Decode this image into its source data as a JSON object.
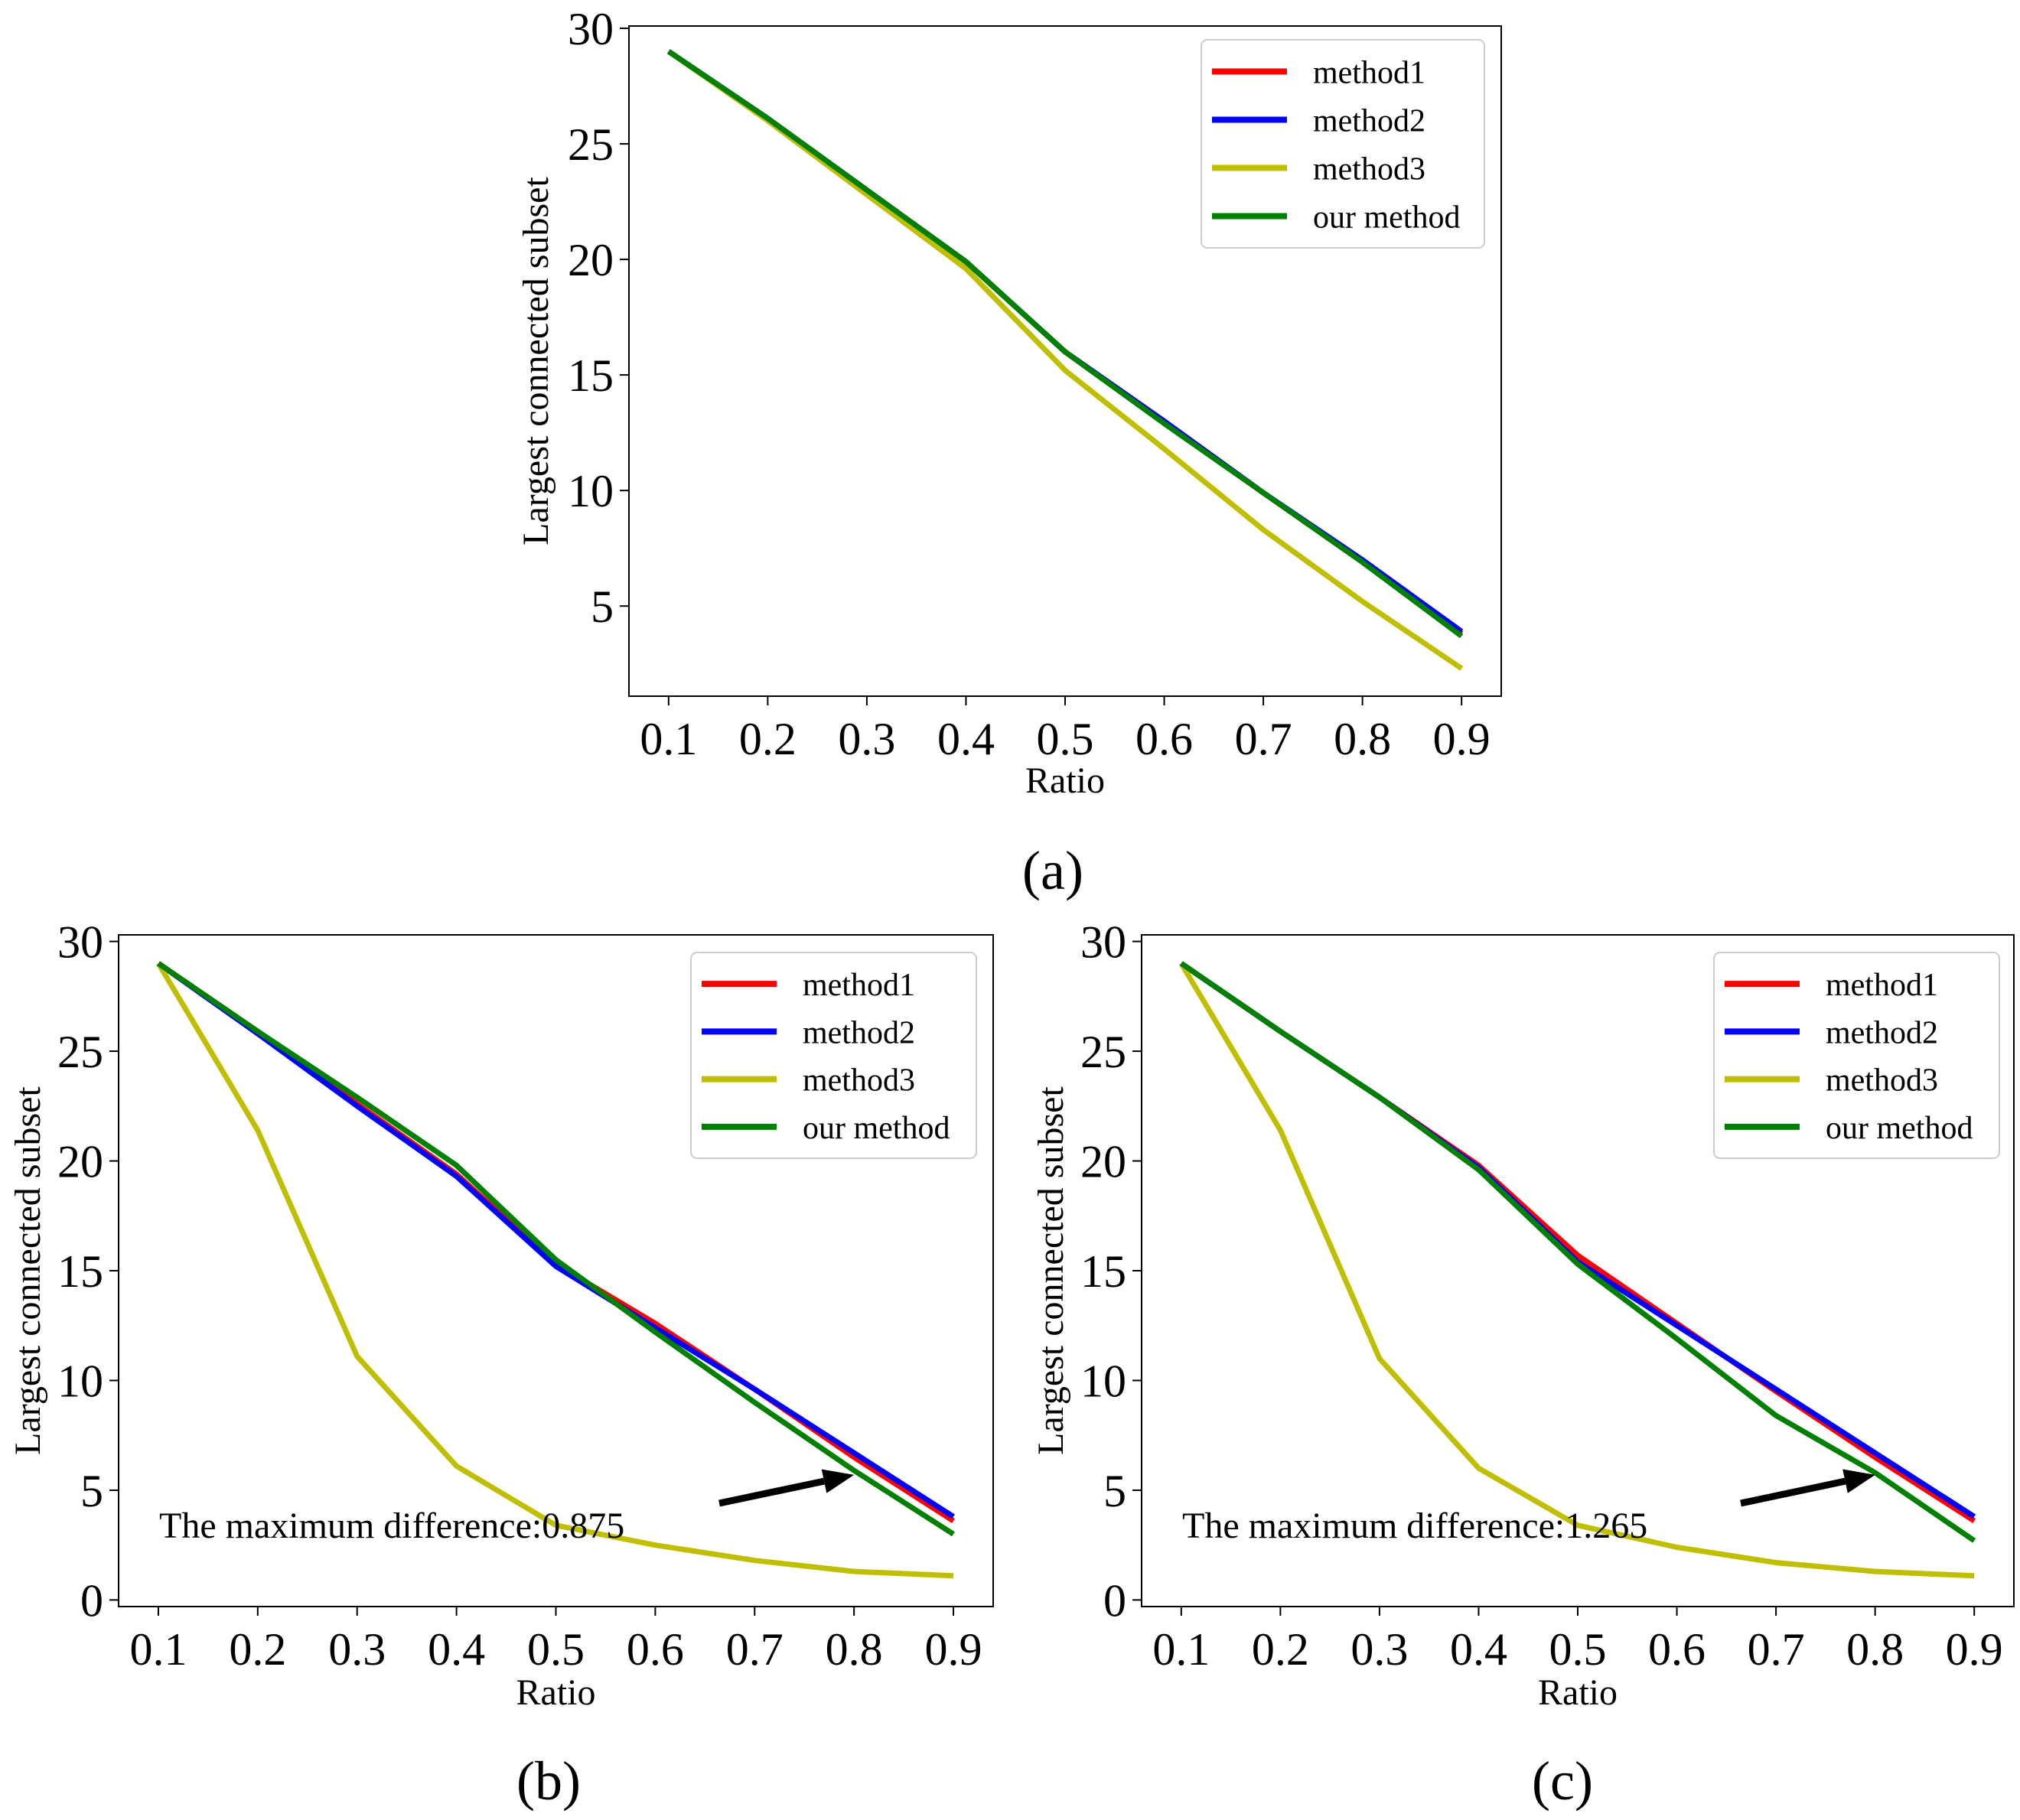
{
  "figure": {
    "panel_labels": [
      "(a)",
      "(b)",
      "(c)"
    ]
  },
  "colors": {
    "method1": "#ff0000",
    "method2": "#0000ff",
    "method3": "#bfbf00",
    "our_method": "#008000"
  },
  "chart_data": [
    {
      "type": "line",
      "panel": "(a)",
      "xlabel": "Ratio",
      "ylabel": "Largest connected subset",
      "x": [
        0.1,
        0.2,
        0.3,
        0.4,
        0.5,
        0.6,
        0.7,
        0.8,
        0.9
      ],
      "xticks": [
        "0.1",
        "0.2",
        "0.3",
        "0.4",
        "0.5",
        "0.6",
        "0.7",
        "0.8",
        "0.9"
      ],
      "yticks": [
        5,
        10,
        15,
        20,
        25,
        30
      ],
      "xlim": [
        0.06,
        0.94
      ],
      "ylim": [
        1.1,
        30.1
      ],
      "legend": "top-right",
      "grid": false,
      "series": [
        {
          "name": "method1",
          "color": "#ff0000",
          "values": [
            29.0,
            26.1,
            23.0,
            19.9,
            16.0,
            13.0,
            9.9,
            6.9,
            3.8
          ]
        },
        {
          "name": "method2",
          "color": "#0000ff",
          "values": [
            29.0,
            26.1,
            23.0,
            19.9,
            16.0,
            13.0,
            9.9,
            7.0,
            3.9
          ]
        },
        {
          "name": "method3",
          "color": "#bfbf00",
          "values": [
            29.0,
            26.0,
            22.8,
            19.6,
            15.2,
            11.8,
            8.3,
            5.2,
            2.3
          ]
        },
        {
          "name": "our method",
          "color": "#008000",
          "values": [
            29.0,
            26.1,
            23.0,
            19.9,
            16.0,
            12.9,
            9.9,
            6.9,
            3.7
          ]
        }
      ]
    },
    {
      "type": "line",
      "panel": "(b)",
      "xlabel": "Ratio",
      "ylabel": "Largest connected subset",
      "x": [
        0.1,
        0.2,
        0.3,
        0.4,
        0.5,
        0.6,
        0.7,
        0.8,
        0.9
      ],
      "xticks": [
        "0.1",
        "0.2",
        "0.3",
        "0.4",
        "0.5",
        "0.6",
        "0.7",
        "0.8",
        "0.9"
      ],
      "yticks": [
        0,
        5,
        10,
        15,
        20,
        25,
        30
      ],
      "xlim": [
        0.06,
        0.94
      ],
      "ylim": [
        -0.3,
        30.3
      ],
      "legend": "top-right",
      "grid": false,
      "annotation": {
        "text": "The maximum difference:0.875",
        "arrow_to": [
          0.8,
          5.7
        ]
      },
      "series": [
        {
          "name": "method1",
          "color": "#ff0000",
          "values": [
            29.0,
            25.9,
            22.6,
            19.4,
            15.3,
            12.6,
            9.6,
            6.5,
            3.6
          ]
        },
        {
          "name": "method2",
          "color": "#0000ff",
          "values": [
            29.0,
            25.8,
            22.5,
            19.3,
            15.2,
            12.4,
            9.6,
            6.7,
            3.8
          ]
        },
        {
          "name": "method3",
          "color": "#bfbf00",
          "values": [
            29.0,
            21.4,
            11.1,
            6.1,
            3.4,
            2.5,
            1.8,
            1.3,
            1.1
          ]
        },
        {
          "name": "our method",
          "color": "#008000",
          "values": [
            29.0,
            25.9,
            22.9,
            19.8,
            15.5,
            12.2,
            9.0,
            5.9,
            3.0
          ]
        }
      ]
    },
    {
      "type": "line",
      "panel": "(c)",
      "xlabel": "Ratio",
      "ylabel": "Largest connected subset",
      "x": [
        0.1,
        0.2,
        0.3,
        0.4,
        0.5,
        0.6,
        0.7,
        0.8,
        0.9
      ],
      "xticks": [
        "0.1",
        "0.2",
        "0.3",
        "0.4",
        "0.5",
        "0.6",
        "0.7",
        "0.8",
        "0.9"
      ],
      "yticks": [
        0,
        5,
        10,
        15,
        20,
        25,
        30
      ],
      "xlim": [
        0.06,
        0.94
      ],
      "ylim": [
        -0.3,
        30.3
      ],
      "legend": "top-right",
      "grid": false,
      "annotation": {
        "text": "The maximum difference:1.265",
        "arrow_to": [
          0.8,
          5.7
        ]
      },
      "series": [
        {
          "name": "method1",
          "color": "#ff0000",
          "values": [
            29.0,
            25.9,
            22.9,
            19.8,
            15.7,
            12.6,
            9.5,
            6.5,
            3.6
          ]
        },
        {
          "name": "method2",
          "color": "#0000ff",
          "values": [
            29.0,
            25.9,
            22.9,
            19.7,
            15.4,
            12.5,
            9.6,
            6.7,
            3.8
          ]
        },
        {
          "name": "method3",
          "color": "#bfbf00",
          "values": [
            29.0,
            21.4,
            11.0,
            6.0,
            3.4,
            2.4,
            1.7,
            1.3,
            1.1
          ]
        },
        {
          "name": "our method",
          "color": "#008000",
          "values": [
            29.0,
            25.9,
            22.9,
            19.6,
            15.3,
            11.9,
            8.4,
            5.8,
            2.7
          ]
        }
      ]
    }
  ]
}
